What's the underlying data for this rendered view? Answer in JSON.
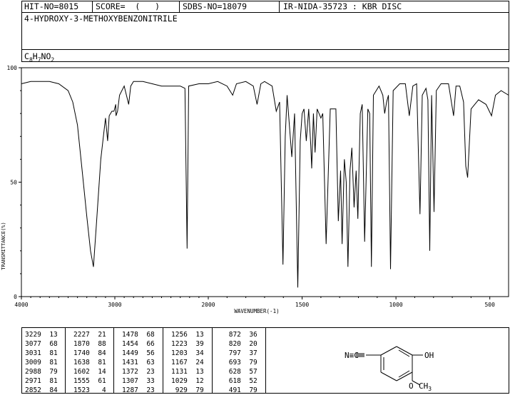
{
  "header": {
    "hit_no": "HIT-NO=8015",
    "score": "SCORE=  (   )",
    "sdbs_no": "SDBS-NO=18079",
    "ir_nida": "IR-NIDA-35723 : KBR DISC",
    "compound": "4-HYDROXY-3-METHOXYBENZONITRILE",
    "formula_c": "C",
    "formula_c_sub": "8",
    "formula_h": "H",
    "formula_h_sub": "7",
    "formula_no": "NO",
    "formula_no_sub": "2"
  },
  "chart_data": {
    "type": "line",
    "xlabel": "WAVENUMBER(-1)",
    "ylabel": "TRANSMITTANCE(%)",
    "xlim": [
      4000,
      400
    ],
    "ylim": [
      0,
      100
    ],
    "x_ticks": [
      4000,
      3000,
      2000,
      1500,
      1000,
      500
    ],
    "x_tick_labels": [
      "4000",
      "3000",
      "2000",
      "1500",
      "1000",
      "500"
    ],
    "y_ticks": [
      0,
      50,
      100
    ],
    "y_tick_labels": [
      "0",
      "50",
      "100"
    ],
    "series": [
      {
        "points": [
          [
            4000,
            93
          ],
          [
            3900,
            94
          ],
          [
            3800,
            94
          ],
          [
            3700,
            94
          ],
          [
            3600,
            93
          ],
          [
            3500,
            90
          ],
          [
            3450,
            85
          ],
          [
            3400,
            75
          ],
          [
            3350,
            55
          ],
          [
            3300,
            35
          ],
          [
            3260,
            20
          ],
          [
            3229,
            13
          ],
          [
            3200,
            30
          ],
          [
            3150,
            60
          ],
          [
            3100,
            78
          ],
          [
            3077,
            68
          ],
          [
            3060,
            79
          ],
          [
            3031,
            81
          ],
          [
            3009,
            81
          ],
          [
            2990,
            84
          ],
          [
            2988,
            79
          ],
          [
            2971,
            81
          ],
          [
            2950,
            88
          ],
          [
            2900,
            92
          ],
          [
            2852,
            84
          ],
          [
            2830,
            92
          ],
          [
            2800,
            94
          ],
          [
            2700,
            94
          ],
          [
            2600,
            93
          ],
          [
            2500,
            92
          ],
          [
            2400,
            92
          ],
          [
            2300,
            92
          ],
          [
            2250,
            91
          ],
          [
            2227,
            21
          ],
          [
            2210,
            92
          ],
          [
            2100,
            93
          ],
          [
            2000,
            93
          ],
          [
            1950,
            94
          ],
          [
            1900,
            92
          ],
          [
            1870,
            88
          ],
          [
            1850,
            93
          ],
          [
            1800,
            94
          ],
          [
            1760,
            92
          ],
          [
            1740,
            84
          ],
          [
            1720,
            93
          ],
          [
            1700,
            94
          ],
          [
            1660,
            92
          ],
          [
            1638,
            81
          ],
          [
            1620,
            85
          ],
          [
            1602,
            14
          ],
          [
            1590,
            70
          ],
          [
            1580,
            88
          ],
          [
            1555,
            61
          ],
          [
            1540,
            80
          ],
          [
            1523,
            4
          ],
          [
            1510,
            68
          ],
          [
            1500,
            80
          ],
          [
            1490,
            82
          ],
          [
            1478,
            68
          ],
          [
            1465,
            82
          ],
          [
            1454,
            66
          ],
          [
            1449,
            56
          ],
          [
            1440,
            80
          ],
          [
            1431,
            63
          ],
          [
            1420,
            82
          ],
          [
            1400,
            78
          ],
          [
            1390,
            80
          ],
          [
            1372,
            23
          ],
          [
            1350,
            82
          ],
          [
            1320,
            82
          ],
          [
            1307,
            33
          ],
          [
            1295,
            55
          ],
          [
            1287,
            23
          ],
          [
            1275,
            60
          ],
          [
            1265,
            50
          ],
          [
            1256,
            13
          ],
          [
            1245,
            55
          ],
          [
            1235,
            65
          ],
          [
            1223,
            39
          ],
          [
            1212,
            55
          ],
          [
            1203,
            34
          ],
          [
            1190,
            80
          ],
          [
            1180,
            84
          ],
          [
            1167,
            24
          ],
          [
            1150,
            82
          ],
          [
            1140,
            80
          ],
          [
            1131,
            13
          ],
          [
            1120,
            88
          ],
          [
            1090,
            92
          ],
          [
            1070,
            88
          ],
          [
            1060,
            80
          ],
          [
            1050,
            85
          ],
          [
            1040,
            88
          ],
          [
            1029,
            12
          ],
          [
            1015,
            90
          ],
          [
            980,
            93
          ],
          [
            950,
            93
          ],
          [
            929,
            79
          ],
          [
            910,
            92
          ],
          [
            890,
            93
          ],
          [
            872,
            36
          ],
          [
            860,
            88
          ],
          [
            840,
            91
          ],
          [
            830,
            86
          ],
          [
            820,
            20
          ],
          [
            810,
            88
          ],
          [
            797,
            37
          ],
          [
            785,
            90
          ],
          [
            760,
            93
          ],
          [
            720,
            93
          ],
          [
            693,
            79
          ],
          [
            680,
            92
          ],
          [
            660,
            92
          ],
          [
            640,
            85
          ],
          [
            628,
            57
          ],
          [
            618,
            52
          ],
          [
            600,
            82
          ],
          [
            560,
            86
          ],
          [
            520,
            84
          ],
          [
            491,
            79
          ],
          [
            470,
            88
          ],
          [
            440,
            90
          ],
          [
            400,
            88
          ]
        ]
      }
    ]
  },
  "peak_table": {
    "columns": [
      [
        [
          "3229",
          "13"
        ],
        [
          "3077",
          "68"
        ],
        [
          "3031",
          "81"
        ],
        [
          "3009",
          "81"
        ],
        [
          "2988",
          "79"
        ],
        [
          "2971",
          "81"
        ],
        [
          "2852",
          "84"
        ]
      ],
      [
        [
          "2227",
          "21"
        ],
        [
          "1870",
          "88"
        ],
        [
          "1740",
          "84"
        ],
        [
          "1638",
          "81"
        ],
        [
          "1602",
          "14"
        ],
        [
          "1555",
          "61"
        ],
        [
          "1523",
          "4"
        ]
      ],
      [
        [
          "1478",
          "68"
        ],
        [
          "1454",
          "66"
        ],
        [
          "1449",
          "56"
        ],
        [
          "1431",
          "63"
        ],
        [
          "1372",
          "23"
        ],
        [
          "1307",
          "33"
        ],
        [
          "1287",
          "23"
        ]
      ],
      [
        [
          "1256",
          "13"
        ],
        [
          "1223",
          "39"
        ],
        [
          "1203",
          "34"
        ],
        [
          "1167",
          "24"
        ],
        [
          "1131",
          "13"
        ],
        [
          "1029",
          "12"
        ],
        [
          "929",
          "79"
        ]
      ],
      [
        [
          "872",
          "36"
        ],
        [
          "820",
          "20"
        ],
        [
          "797",
          "37"
        ],
        [
          "693",
          "79"
        ],
        [
          "628",
          "57"
        ],
        [
          "618",
          "52"
        ],
        [
          "491",
          "79"
        ]
      ]
    ]
  },
  "structure": {
    "nitrile": "N≡C",
    "hydroxy": "OH",
    "methoxy_o": "O",
    "methoxy_ch": "CH",
    "methoxy_sub": "3"
  }
}
